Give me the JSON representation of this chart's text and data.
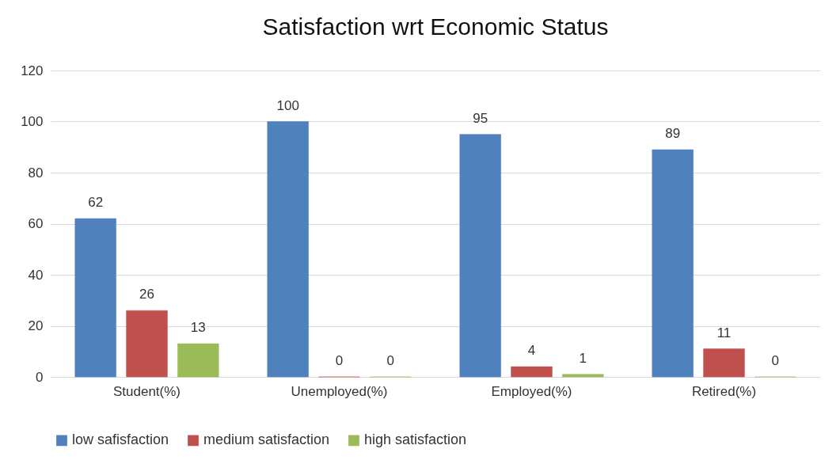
{
  "chart_data": {
    "type": "bar",
    "title": "Satisfaction wrt Economic Status",
    "categories": [
      "Student(%)",
      "Unemployed(%)",
      "Employed(%)",
      "Retired(%)"
    ],
    "series": [
      {
        "name": "low safisfaction",
        "color": "#4f81bd",
        "values": [
          62,
          100,
          95,
          89
        ]
      },
      {
        "name": "medium satisfaction",
        "color": "#c0504d",
        "values": [
          26,
          0,
          4,
          11
        ]
      },
      {
        "name": "high satisfaction",
        "color": "#9bbb59",
        "values": [
          13,
          0,
          1,
          0
        ]
      }
    ],
    "ylim": [
      0,
      120
    ],
    "yticks": [
      0,
      20,
      40,
      60,
      80,
      100,
      120
    ],
    "grid": "y",
    "legend": "bottom",
    "data_labels": true
  }
}
